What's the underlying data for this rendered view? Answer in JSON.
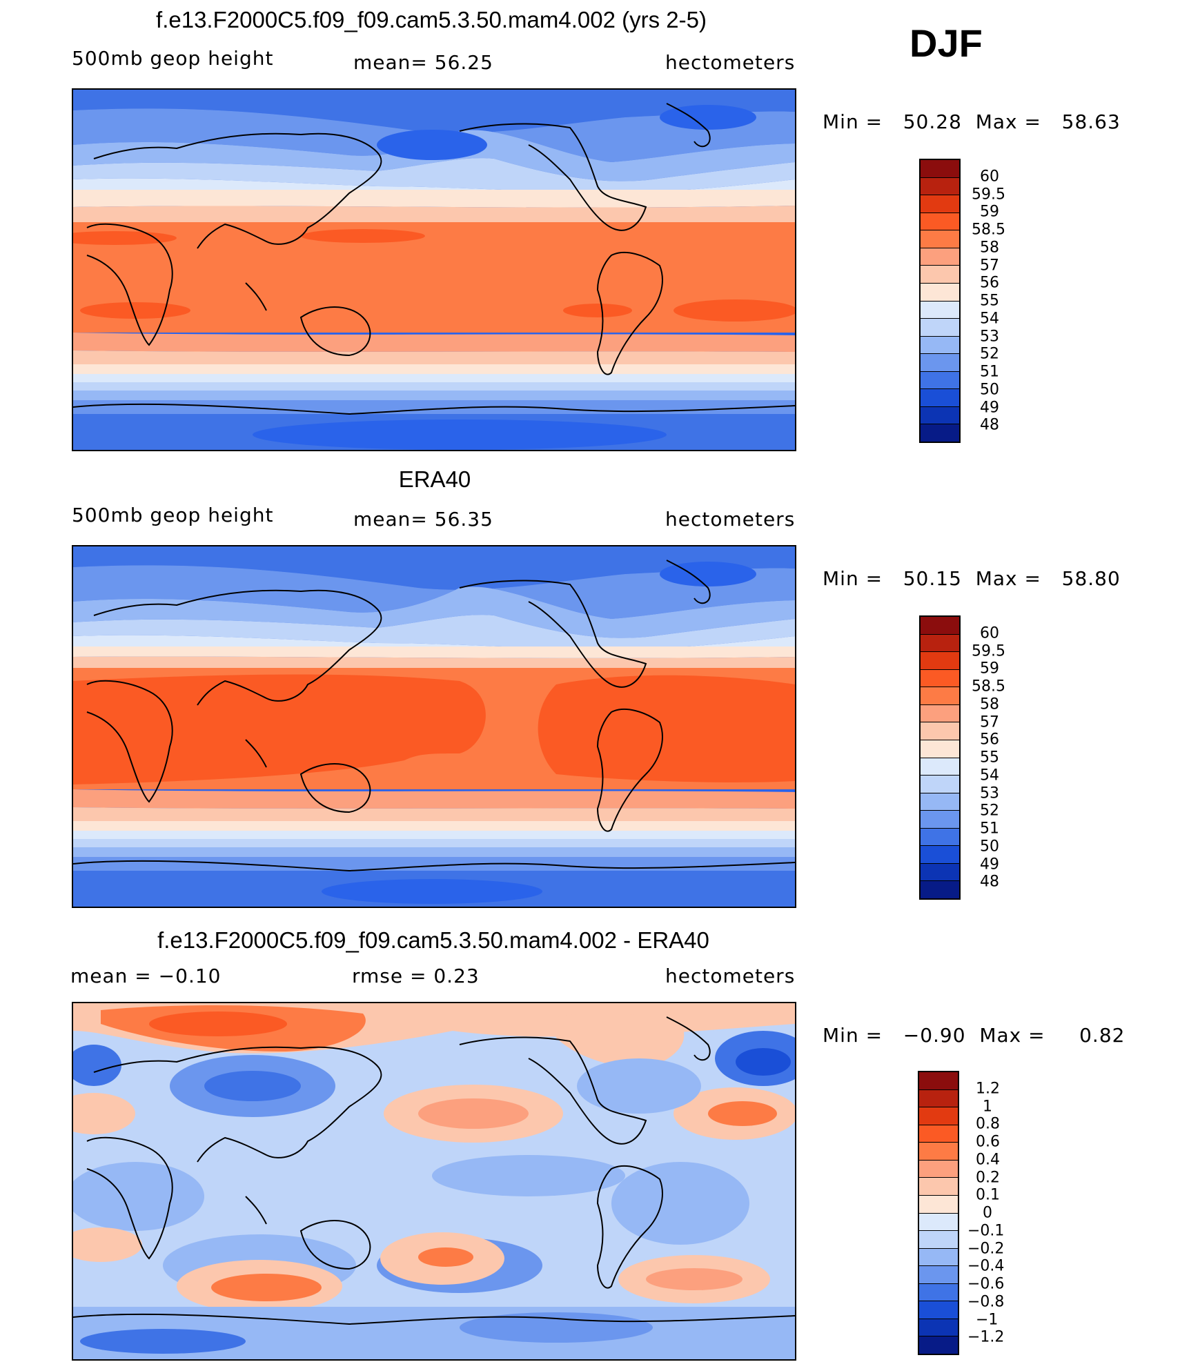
{
  "season": "DJF",
  "panels": [
    {
      "id": "model",
      "title": "f.e13.F2000C5.f09_f09.cam5.3.50.mam4.002 (yrs 2-5)",
      "left_label": "500mb geop height",
      "center_label": "mean=  56.25",
      "right_label": "hectometers",
      "minmax": "Min =   50.28  Max =   58.63",
      "colorbar": {
        "labels": [
          "60",
          "59.5",
          "59",
          "58.5",
          "58",
          "57",
          "56",
          "55",
          "54",
          "53",
          "52",
          "51",
          "50",
          "49",
          "48"
        ],
        "colors": [
          "#8b0d0d",
          "#b8220f",
          "#e23a11",
          "#fb5a24",
          "#fd7b45",
          "#fca07e",
          "#fcc7ad",
          "#fde6d6",
          "#dce9fb",
          "#bfd5f9",
          "#96b8f5",
          "#6b96ee",
          "#3f73e6",
          "#1a4fd7",
          "#0c34b4",
          "#071b87"
        ]
      }
    },
    {
      "id": "obs",
      "title": "ERA40",
      "left_label": "500mb geop height",
      "center_label": "mean=  56.35",
      "right_label": "hectometers",
      "minmax": "Min =   50.15  Max =   58.80",
      "colorbar": {
        "labels": [
          "60",
          "59.5",
          "59",
          "58.5",
          "58",
          "57",
          "56",
          "55",
          "54",
          "53",
          "52",
          "51",
          "50",
          "49",
          "48"
        ],
        "colors": [
          "#8b0d0d",
          "#b8220f",
          "#e23a11",
          "#fb5a24",
          "#fd7b45",
          "#fca07e",
          "#fcc7ad",
          "#fde6d6",
          "#dce9fb",
          "#bfd5f9",
          "#96b8f5",
          "#6b96ee",
          "#3f73e6",
          "#1a4fd7",
          "#0c34b4",
          "#071b87"
        ]
      }
    },
    {
      "id": "diff",
      "title": "f.e13.F2000C5.f09_f09.cam5.3.50.mam4.002 - ERA40",
      "left_label": "mean =   −0.10",
      "center_label": "rmse =    0.23",
      "right_label": "hectometers",
      "minmax": "Min =   −0.90  Max =     0.82",
      "colorbar": {
        "labels": [
          "1.2",
          "1",
          "0.8",
          "0.6",
          "0.4",
          "0.2",
          "0.1",
          "0",
          "−0.1",
          "−0.2",
          "−0.4",
          "−0.6",
          "−0.8",
          "−1",
          "−1.2"
        ],
        "colors": [
          "#8b0d0d",
          "#b8220f",
          "#e23a11",
          "#fb5a24",
          "#fd7b45",
          "#fca07e",
          "#fcc7ad",
          "#fde6d6",
          "#dce9fb",
          "#bfd5f9",
          "#96b8f5",
          "#6b96ee",
          "#3f73e6",
          "#1a4fd7",
          "#0c34b4",
          "#071b87"
        ]
      }
    }
  ]
}
